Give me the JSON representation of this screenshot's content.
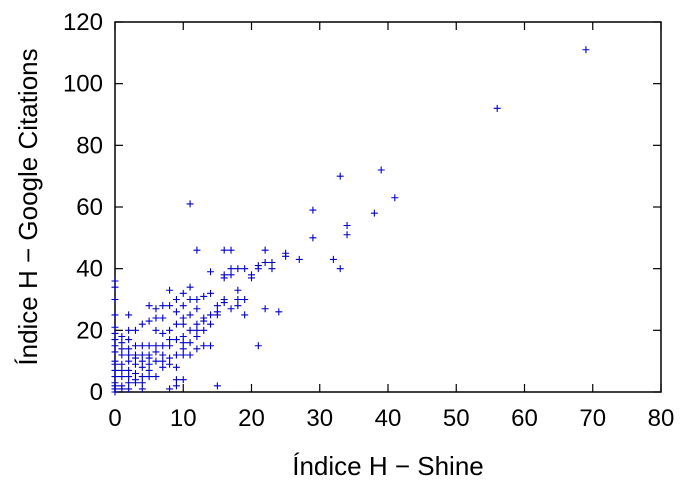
{
  "chart_data": {
    "type": "scatter",
    "title": "",
    "xlabel": "Índice H − Shine",
    "ylabel": "Índice H − Google Citations",
    "xlim": [
      0,
      80
    ],
    "ylim": [
      0,
      120
    ],
    "xticks": [
      "0",
      "10",
      "20",
      "30",
      "40",
      "50",
      "60",
      "70",
      "80"
    ],
    "yticks": [
      "0",
      "20",
      "40",
      "60",
      "80",
      "100",
      "120"
    ],
    "marker": "+",
    "color": "#0000cc",
    "grid": false,
    "legend": "none",
    "series": [
      {
        "points": [
          [
            69,
            111
          ],
          [
            56,
            92
          ],
          [
            39,
            72
          ],
          [
            33,
            70
          ],
          [
            41,
            63
          ],
          [
            38,
            58
          ],
          [
            29,
            59
          ],
          [
            11,
            61
          ],
          [
            34,
            54
          ],
          [
            34,
            51
          ],
          [
            29,
            50
          ],
          [
            32,
            43
          ],
          [
            33,
            40
          ],
          [
            22,
            46
          ],
          [
            25,
            45
          ],
          [
            25,
            44
          ],
          [
            27,
            43
          ],
          [
            22,
            42
          ],
          [
            23,
            42
          ],
          [
            21,
            41
          ],
          [
            23,
            40
          ],
          [
            20,
            38
          ],
          [
            19,
            40
          ],
          [
            18,
            40
          ],
          [
            17,
            40
          ],
          [
            16,
            46
          ],
          [
            17,
            46
          ],
          [
            12,
            46
          ],
          [
            14,
            39
          ],
          [
            16,
            37
          ],
          [
            17,
            38
          ],
          [
            18,
            33
          ],
          [
            22,
            27
          ],
          [
            24,
            26
          ],
          [
            21,
            15
          ],
          [
            19,
            30
          ],
          [
            18,
            28
          ],
          [
            19,
            25
          ],
          [
            17,
            27
          ],
          [
            16,
            30
          ],
          [
            15,
            26
          ],
          [
            15,
            28
          ],
          [
            16,
            29
          ],
          [
            14,
            25
          ],
          [
            14,
            22
          ],
          [
            13,
            24
          ],
          [
            13,
            20
          ],
          [
            12,
            18
          ],
          [
            12,
            22
          ],
          [
            11,
            20
          ],
          [
            11,
            25
          ],
          [
            11,
            30
          ],
          [
            10,
            32
          ],
          [
            10,
            28
          ],
          [
            10,
            24
          ],
          [
            10,
            22
          ],
          [
            10,
            18
          ],
          [
            10,
            14
          ],
          [
            10,
            4
          ],
          [
            9,
            30
          ],
          [
            9,
            26
          ],
          [
            9,
            22
          ],
          [
            9,
            17
          ],
          [
            9,
            12
          ],
          [
            9,
            4
          ],
          [
            9,
            2
          ],
          [
            8,
            33
          ],
          [
            8,
            28
          ],
          [
            8,
            20
          ],
          [
            8,
            17
          ],
          [
            8,
            15
          ],
          [
            8,
            11
          ],
          [
            8,
            1
          ],
          [
            7,
            28
          ],
          [
            7,
            24
          ],
          [
            7,
            19
          ],
          [
            7,
            15
          ],
          [
            7,
            12
          ],
          [
            6,
            27
          ],
          [
            6,
            24
          ],
          [
            6,
            20
          ],
          [
            6,
            15
          ],
          [
            6,
            13
          ],
          [
            6,
            10
          ],
          [
            5,
            28
          ],
          [
            5,
            23
          ],
          [
            5,
            15
          ],
          [
            5,
            12
          ],
          [
            5,
            9
          ],
          [
            5,
            7
          ],
          [
            5,
            5
          ],
          [
            4,
            22
          ],
          [
            4,
            15
          ],
          [
            4,
            12
          ],
          [
            4,
            10
          ],
          [
            4,
            8
          ],
          [
            4,
            5
          ],
          [
            4,
            3
          ],
          [
            3,
            20
          ],
          [
            3,
            15
          ],
          [
            3,
            12
          ],
          [
            3,
            9
          ],
          [
            3,
            6
          ],
          [
            3,
            3
          ],
          [
            2,
            25
          ],
          [
            2,
            20
          ],
          [
            2,
            17
          ],
          [
            2,
            14
          ],
          [
            2,
            10
          ],
          [
            2,
            7
          ],
          [
            2,
            5
          ],
          [
            2,
            3
          ],
          [
            1,
            18
          ],
          [
            1,
            12
          ],
          [
            1,
            9
          ],
          [
            1,
            7
          ],
          [
            1,
            5
          ],
          [
            1,
            2
          ],
          [
            0,
            36
          ],
          [
            0,
            34
          ],
          [
            0,
            30
          ],
          [
            0,
            25
          ],
          [
            0,
            21
          ],
          [
            0,
            19
          ],
          [
            0,
            17
          ],
          [
            0,
            15
          ],
          [
            0,
            13
          ],
          [
            0,
            10
          ],
          [
            0,
            9
          ],
          [
            0,
            7
          ],
          [
            0,
            5
          ],
          [
            0,
            3
          ],
          [
            0,
            2
          ],
          [
            0,
            1
          ],
          [
            0,
            0
          ],
          [
            12,
            27
          ],
          [
            13,
            31
          ],
          [
            14,
            32
          ],
          [
            15,
            2
          ],
          [
            11,
            34
          ],
          [
            12,
            20
          ],
          [
            13,
            23
          ],
          [
            14,
            15
          ],
          [
            15,
            25
          ],
          [
            20,
            37
          ],
          [
            21,
            40
          ],
          [
            16,
            38
          ],
          [
            18,
            30
          ],
          [
            12,
            30
          ],
          [
            13,
            15
          ],
          [
            11,
            16
          ],
          [
            10,
            12
          ],
          [
            9,
            8
          ],
          [
            7,
            8
          ],
          [
            6,
            5
          ],
          [
            3,
            4
          ],
          [
            1,
            1
          ],
          [
            2,
            1
          ],
          [
            4,
            1
          ],
          [
            1,
            16
          ],
          [
            1,
            14
          ],
          [
            3,
            11
          ],
          [
            2,
            12
          ],
          [
            5,
            11
          ],
          [
            7,
            10
          ],
          [
            8,
            9
          ],
          [
            11,
            12
          ],
          [
            12,
            14
          ],
          [
            10,
            16
          ]
        ]
      }
    ]
  }
}
